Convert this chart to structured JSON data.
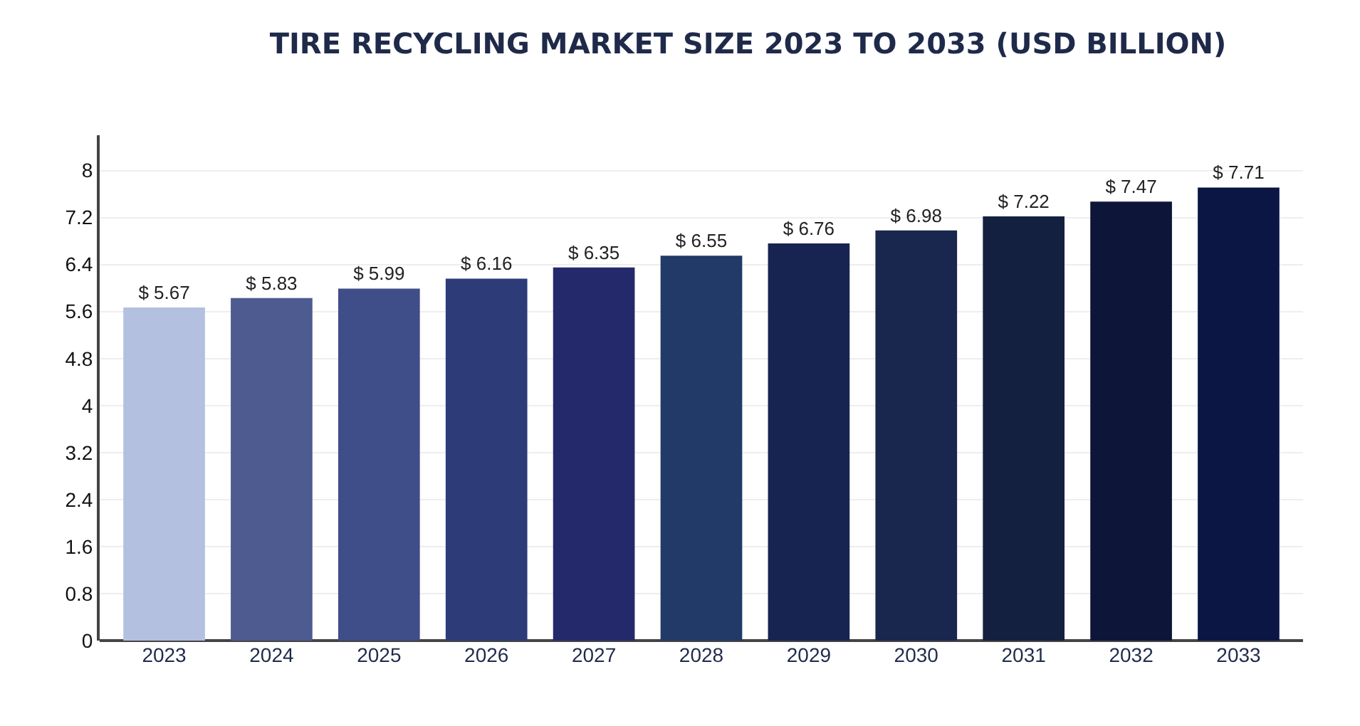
{
  "chart_data": {
    "type": "bar",
    "title": "TIRE RECYCLING MARKET SIZE 2023 TO 2033 (USD BILLION)",
    "categories": [
      "2023",
      "2024",
      "2025",
      "2026",
      "2027",
      "2028",
      "2029",
      "2030",
      "2031",
      "2032",
      "2033"
    ],
    "values": [
      5.67,
      5.83,
      5.99,
      6.16,
      6.35,
      6.55,
      6.76,
      6.98,
      7.22,
      7.47,
      7.71
    ],
    "value_labels": [
      "$ 5.67",
      "$ 5.83",
      "$ 5.99",
      "$ 6.16",
      "$ 6.35",
      "$ 6.55",
      "$ 6.76",
      "$ 6.98",
      "$ 7.22",
      "$ 7.47",
      "$ 7.71"
    ],
    "colors": [
      "#b4c0e0",
      "#4d5b90",
      "#3f4d88",
      "#2d3b78",
      "#23296a",
      "#213a68",
      "#172452",
      "#19264e",
      "#14203f",
      "#0d1638",
      "#0c1644"
    ],
    "ylim": [
      0,
      8.6
    ],
    "yticks": [
      0,
      0.8,
      1.6,
      2.4,
      3.2,
      4,
      4.8,
      5.6,
      6.4,
      7.2,
      8
    ],
    "grid": "y",
    "legend": false
  }
}
